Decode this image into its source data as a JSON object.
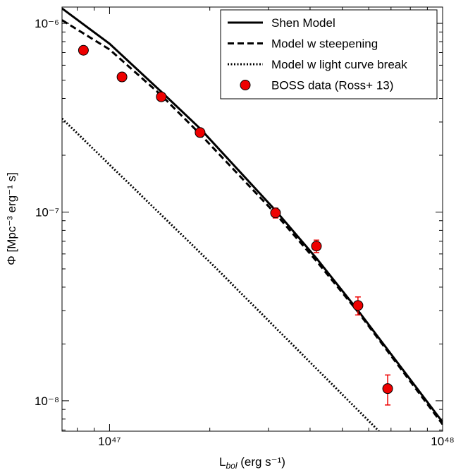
{
  "chart_data": {
    "type": "line",
    "xlabel": {
      "main": "L",
      "sub": "bol",
      "rest": " (erg s⁻¹)"
    },
    "ylabel": "Φ [Mpc⁻³ erg⁻¹ s]",
    "xscale": "log",
    "yscale": "log",
    "xlim": [
      7.2e+46,
      1e+48
    ],
    "ylim": [
      6.9e-09,
      1.22e-06
    ],
    "xticks": [
      {
        "value": 1e+47,
        "label": "10⁴⁷"
      },
      {
        "value": 1e+48,
        "label": "10⁴⁸"
      }
    ],
    "yticks": [
      {
        "value": 1e-08,
        "label": "10⁻⁸"
      },
      {
        "value": 1e-07,
        "label": "10⁻⁷"
      },
      {
        "value": 1e-06,
        "label": "10⁻⁶"
      }
    ],
    "xminorticks": [
      8e+46,
      9e+46,
      2e+47,
      3e+47,
      4e+47,
      5e+47,
      6e+47,
      7e+47,
      8e+47,
      9e+47
    ],
    "yminorticks": [
      7e-09,
      8e-09,
      9e-09,
      2e-08,
      3e-08,
      4e-08,
      5e-08,
      6e-08,
      7e-08,
      8e-08,
      9e-08,
      2e-07,
      3e-07,
      4e-07,
      5e-07,
      6e-07,
      7e-07,
      8e-07,
      9e-07
    ],
    "legend": "upper right",
    "series": [
      {
        "name": "Shen Model",
        "kind": "line",
        "style": "solid",
        "color": "#000000",
        "x": [
          7.2e+46,
          1e+47,
          1.43e+47,
          1.87e+47,
          3.15e+47,
          4.18e+47,
          5.57e+47,
          1e+48
        ],
        "values": [
          1.2e-06,
          7.8e-07,
          4.34e-07,
          2.77e-07,
          1.02e-07,
          5.69e-08,
          3.01e-08,
          7.7e-09
        ]
      },
      {
        "name": "Model w steepening",
        "kind": "line",
        "style": "dashed",
        "color": "#000000",
        "x": [
          7.2e+46,
          1e+47,
          1.43e+47,
          1.87e+47,
          3.15e+47,
          4.18e+47,
          5.57e+47,
          1e+48
        ],
        "values": [
          1.04e-06,
          7.27e-07,
          4.16e-07,
          2.59e-07,
          9.8e-08,
          5.5e-08,
          2.96e-08,
          7.5e-09
        ]
      },
      {
        "name": "Model w light curve break",
        "kind": "line",
        "style": "dotted",
        "color": "#000000",
        "x": [
          7.2e+46,
          2.03e+47,
          6.44e+47
        ],
        "values": [
          3.13e-07,
          5.3e-08,
          6.9e-09
        ]
      },
      {
        "name": "BOSS data (Ross+ 13)",
        "kind": "scatter",
        "color": "#ee0000",
        "x": [
          8.35e+46,
          1.09e+47,
          1.43e+47,
          1.87e+47,
          3.15e+47,
          4.18e+47,
          5.57e+47,
          6.84e+47
        ],
        "values": [
          7.2e-07,
          5.2e-07,
          4.08e-07,
          2.64e-07,
          9.9e-08,
          6.6e-08,
          3.2e-08,
          1.16e-08
        ],
        "errors": [
          null,
          null,
          null,
          null,
          6e-09,
          5e-09,
          3.5e-09,
          2.1e-09
        ]
      }
    ]
  }
}
